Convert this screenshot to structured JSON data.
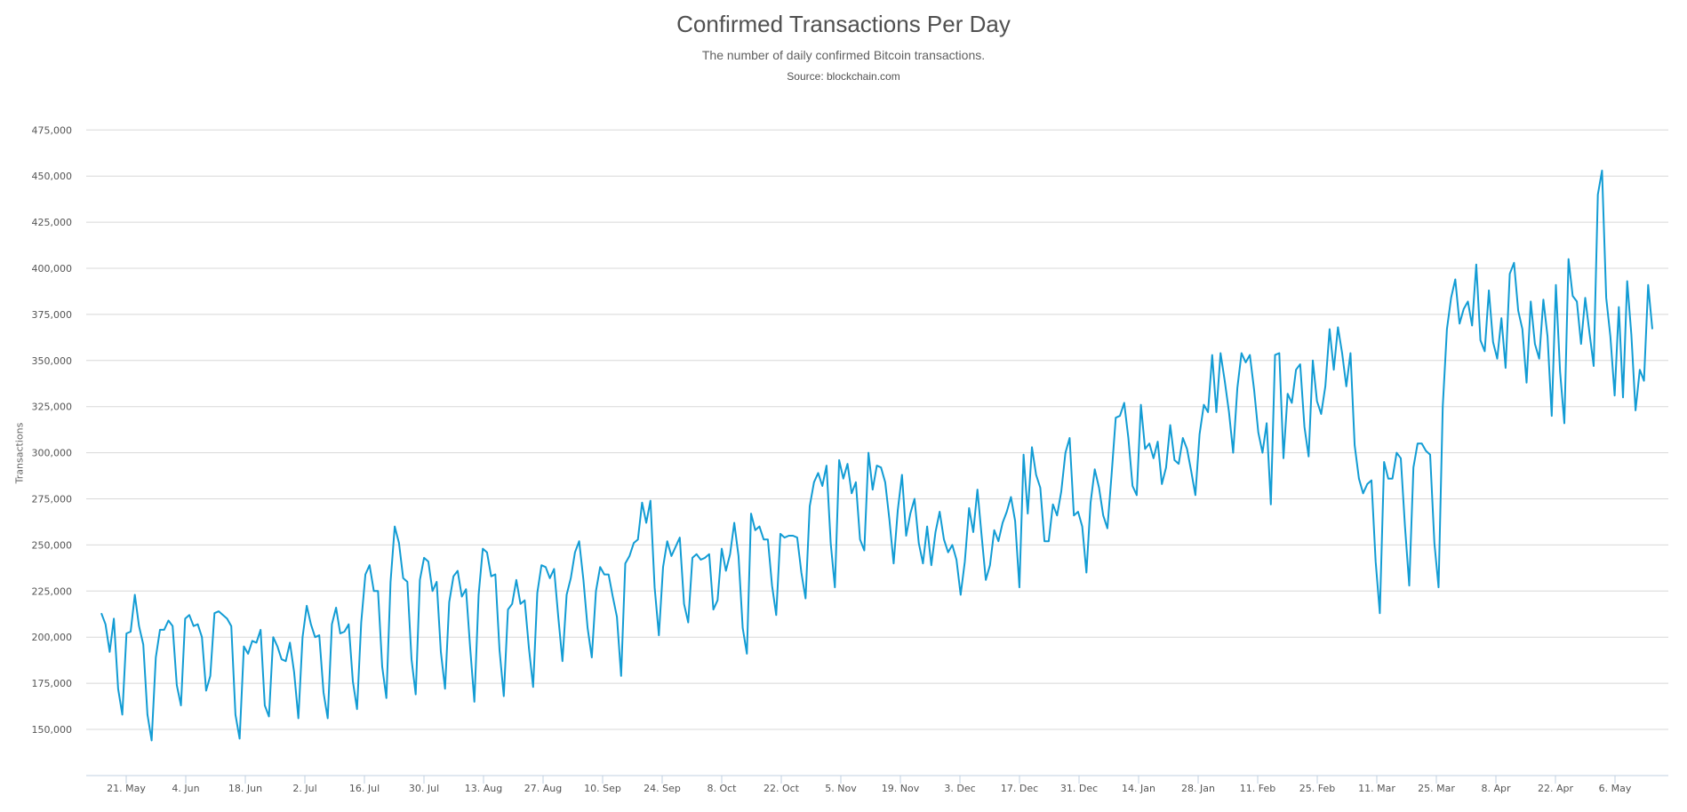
{
  "header": {
    "title": "Confirmed Transactions Per Day",
    "subtitle": "The number of daily confirmed Bitcoin transactions.",
    "source": "Source: blockchain.com"
  },
  "colors": {
    "line": "#129cd4",
    "grid": "#d8d8d8",
    "axis": "#c0d0e0",
    "text": "#505050"
  },
  "chart_data": {
    "type": "line",
    "title": "Confirmed Transactions Per Day",
    "subtitle": "The number of daily confirmed Bitcoin transactions.",
    "source": "Source: blockchain.com",
    "xlabel": "",
    "ylabel": "Transactions",
    "ylim": [
      125000,
      475000
    ],
    "grid": true,
    "legend": "none",
    "y_ticks": [
      "150,000",
      "175,000",
      "200,000",
      "225,000",
      "250,000",
      "275,000",
      "300,000",
      "325,000",
      "350,000",
      "375,000",
      "400,000",
      "425,000",
      "450,000",
      "475,000"
    ],
    "y_tick_values": [
      150000,
      175000,
      200000,
      225000,
      250000,
      275000,
      300000,
      325000,
      350000,
      375000,
      400000,
      425000,
      450000,
      475000
    ],
    "x_ticks": [
      "21. May",
      "4. Jun",
      "18. Jun",
      "2. Jul",
      "16. Jul",
      "30. Jul",
      "13. Aug",
      "27. Aug",
      "10. Sep",
      "24. Sep",
      "8. Oct",
      "22. Oct",
      "5. Nov",
      "19. Nov",
      "3. Dec",
      "17. Dec",
      "31. Dec",
      "14. Jan",
      "28. Jan",
      "11. Feb",
      "25. Feb",
      "11. Mar",
      "25. Mar",
      "8. Apr",
      "22. Apr",
      "6. May"
    ],
    "x_start_label": "~15. May",
    "interval": "daily",
    "series": [
      {
        "name": "Transactions",
        "unit": "thousands",
        "values": [
          213,
          207,
          192,
          210,
          172,
          158,
          202,
          203,
          223,
          206,
          196,
          158,
          144,
          189,
          204,
          204,
          209,
          206,
          174,
          163,
          210,
          212,
          206,
          207,
          200,
          171,
          179,
          213,
          214,
          212,
          210,
          206,
          158,
          145,
          195,
          191,
          198,
          197,
          204,
          163,
          157,
          200,
          195,
          188,
          187,
          197,
          181,
          156,
          200,
          217,
          207,
          200,
          201,
          170,
          156,
          207,
          216,
          202,
          203,
          207,
          176,
          161,
          208,
          234,
          239,
          225,
          225,
          184,
          167,
          230,
          260,
          251,
          232,
          230,
          188,
          169,
          231,
          243,
          241,
          225,
          230,
          192,
          172,
          219,
          233,
          236,
          222,
          226,
          194,
          165,
          223,
          248,
          246,
          233,
          234,
          193,
          168,
          215,
          218,
          231,
          218,
          220,
          194,
          173,
          224,
          239,
          238,
          232,
          237,
          211,
          187,
          223,
          232,
          246,
          252,
          231,
          205,
          189,
          225,
          238,
          234,
          234,
          222,
          211,
          179,
          240,
          244,
          251,
          253,
          273,
          262,
          274,
          227,
          201,
          238,
          252,
          244,
          249,
          254,
          218,
          208,
          243,
          245,
          242,
          243,
          245,
          215,
          220,
          248,
          236,
          245,
          262,
          244,
          205,
          191,
          267,
          258,
          260,
          253,
          253,
          228,
          212,
          256,
          254,
          255,
          255,
          254,
          235,
          221,
          271,
          284,
          289,
          282,
          293,
          251,
          227,
          296,
          286,
          294,
          278,
          284,
          253,
          247,
          300,
          280,
          293,
          292,
          284,
          264,
          240,
          269,
          288,
          255,
          267,
          275,
          251,
          240,
          260,
          239,
          257,
          268,
          253,
          246,
          250,
          242,
          223,
          241,
          270,
          257,
          280,
          255,
          231,
          239,
          258,
          252,
          262,
          268,
          276,
          263,
          227,
          299,
          267,
          303,
          288,
          281,
          252,
          252,
          272,
          266,
          279,
          300,
          308,
          266,
          268,
          260,
          235,
          273,
          291,
          281,
          266,
          259,
          288,
          319,
          320,
          327,
          308,
          282,
          277,
          326,
          302,
          305,
          297,
          306,
          283,
          292,
          315,
          296,
          294,
          308,
          302,
          290,
          277,
          310,
          326,
          322,
          353,
          322,
          354,
          339,
          322,
          300,
          335,
          354,
          349,
          353,
          334,
          311,
          300,
          316,
          272,
          353,
          354,
          297,
          332,
          327,
          345,
          348,
          314,
          298,
          350,
          328,
          321,
          336,
          367,
          345,
          368,
          354,
          336,
          354,
          304,
          286,
          278,
          283,
          285,
          241,
          213,
          295,
          286,
          286,
          300,
          297,
          260,
          228,
          292,
          305,
          305,
          301,
          299,
          251,
          227,
          325,
          367,
          384,
          394,
          370,
          378,
          382,
          369,
          402,
          361,
          355,
          388,
          360,
          351,
          373,
          346,
          397,
          403,
          377,
          367,
          338,
          382,
          359,
          351,
          383,
          363,
          320,
          391,
          344,
          316,
          405,
          385,
          382,
          359,
          384,
          365,
          347,
          440,
          453,
          384,
          363,
          331,
          379,
          330,
          393,
          364,
          323,
          345,
          339,
          391,
          367
        ]
      }
    ]
  }
}
